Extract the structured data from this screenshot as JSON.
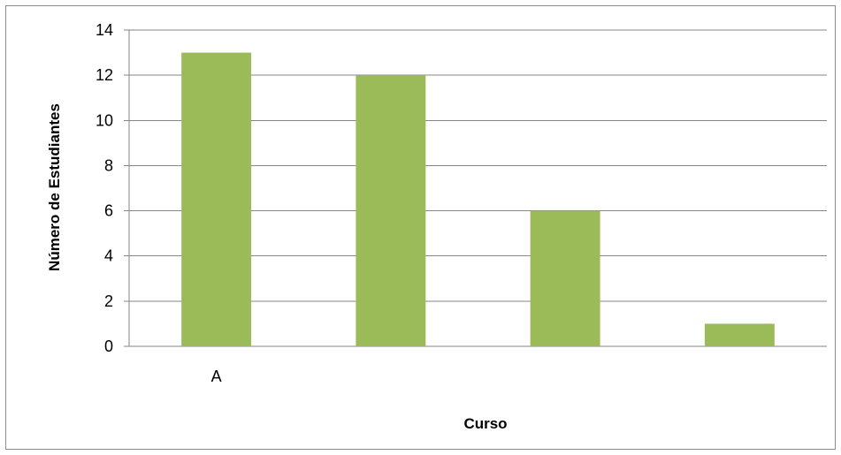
{
  "chart_data": {
    "type": "bar",
    "categories": [
      "A",
      "",
      "",
      ""
    ],
    "values": [
      13,
      12,
      6,
      1
    ],
    "title": "",
    "xlabel": "Curso",
    "ylabel": "Número de Estudiantes",
    "ylim": [
      0,
      14
    ],
    "yticks": [
      0,
      2,
      4,
      6,
      8,
      10,
      12,
      14
    ],
    "grid": true,
    "legend": "none",
    "bar_color": "#9bbb59",
    "grid_color": "#868686"
  }
}
